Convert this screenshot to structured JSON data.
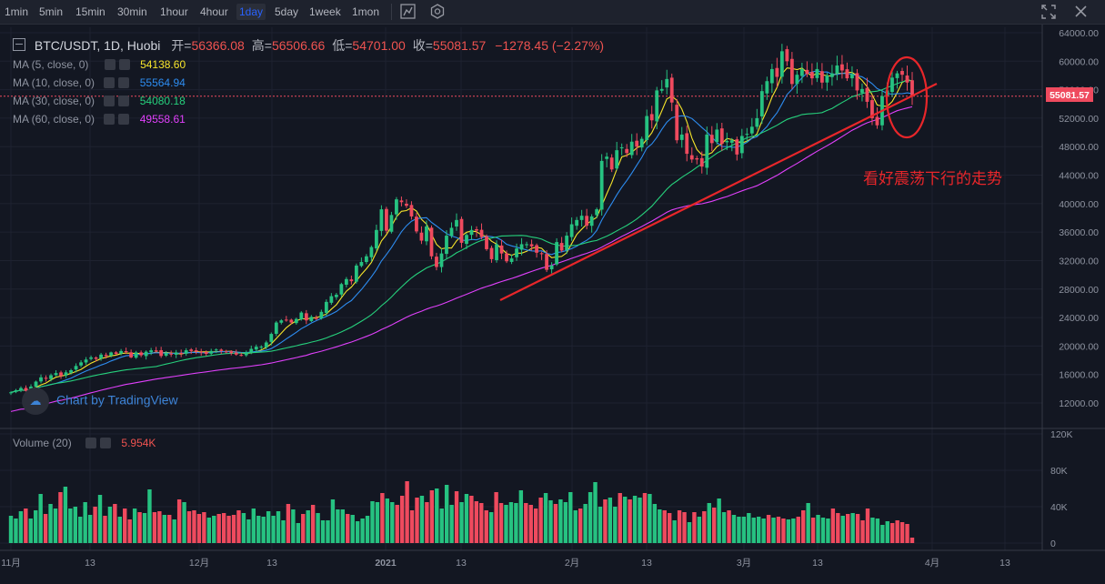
{
  "toolbar": {
    "timeframes": [
      "1min",
      "5min",
      "15min",
      "30min",
      "1hour",
      "4hour",
      "1day",
      "5day",
      "1week",
      "1mon"
    ],
    "active_timeframe": "1day"
  },
  "main": {
    "symbol_label": "BTC/USDT, 1D, Huobi",
    "open_label": "开=",
    "open_value": "56366.08",
    "high_label": "高=",
    "high_value": "56506.66",
    "low_label": "低=",
    "low_value": "54701.00",
    "close_label": "收=",
    "close_value": "55081.57",
    "change": "−1278.45 (−2.27%)",
    "ma": [
      {
        "label": "MA (5, close, 0)",
        "value": "54138.60",
        "color": "#f7e52b"
      },
      {
        "label": "MA (10, close, 0)",
        "value": "55564.94",
        "color": "#2d8cf0"
      },
      {
        "label": "MA (30, close, 0)",
        "value": "54080.18",
        "color": "#26d07c"
      },
      {
        "label": "MA (60, close, 0)",
        "value": "49558.61",
        "color": "#e040fb"
      }
    ],
    "watermark": "Chart by TradingView",
    "annotation": "看好震荡下行的走势",
    "price_tag": "55081.57"
  },
  "volume": {
    "label": "Volume (20)",
    "value": "5.954K"
  },
  "colors": {
    "up": "#26c281",
    "down": "#ef4a5e",
    "annotation": "#e8262a",
    "background": "#131722"
  },
  "chart_data": [
    {
      "type": "candlestick",
      "title": "BTC/USDT, 1D, Huobi",
      "y_ticks": [
        "64000.00",
        "60000.00",
        "56000.00",
        "52000.00",
        "48000.00",
        "44000.00",
        "40000.00",
        "36000.00",
        "32000.00",
        "28000.00",
        "24000.00",
        "20000.00",
        "16000.00",
        "12000.00"
      ],
      "ylim": [
        10000,
        65000
      ],
      "x_ticks": [
        "11月",
        "13",
        "12月",
        "13",
        "2021",
        "13",
        "2月",
        "13",
        "3月",
        "13",
        "4月",
        "13"
      ],
      "close_series": [
        13500,
        13800,
        14100,
        13700,
        14300,
        15000,
        15600,
        15400,
        15900,
        16200,
        15800,
        16300,
        16600,
        17200,
        17700,
        18100,
        18400,
        18200,
        18800,
        18600,
        19100,
        18900,
        19300,
        19200,
        18400,
        19100,
        18700,
        19200,
        19400,
        19300,
        18600,
        19000,
        18800,
        19100,
        18900,
        19400,
        19300,
        19200,
        19100,
        18900,
        19300,
        19500,
        19300,
        19200,
        19000,
        18800,
        18700,
        19100,
        19600,
        19900,
        19900,
        20500,
        21700,
        23300,
        23600,
        23700,
        23300,
        23800,
        24700,
        23600,
        24100,
        23800,
        24800,
        26200,
        27000,
        27200,
        28700,
        29400,
        29100,
        31300,
        31800,
        32600,
        33900,
        36300,
        39200,
        36200,
        38400,
        40600,
        40200,
        39700,
        38200,
        36100,
        34800,
        36800,
        32600,
        31100,
        33000,
        35500,
        36600,
        37700,
        34500,
        35600,
        36300,
        36200,
        35300,
        33600,
        32200,
        34300,
        33000,
        31900,
        32300,
        33700,
        34300,
        34300,
        34000,
        33100,
        32900,
        30700,
        31300,
        34600,
        33400,
        35500,
        37100,
        37700,
        38300,
        36900,
        38200,
        39200,
        46000,
        46600,
        44800,
        47500,
        47900,
        47100,
        48700,
        48000,
        49100,
        52300,
        51700,
        55900,
        56100,
        57500,
        54200,
        48900,
        49700,
        47000,
        46200,
        46200,
        45200,
        49700,
        48500,
        50400,
        48400,
        48800,
        48900,
        46900,
        49500,
        49800,
        50800,
        52000,
        55800,
        57200,
        58900,
        57800,
        61400,
        60000,
        56800,
        58100,
        58900,
        58200,
        57600,
        58900,
        57000,
        58000,
        58300,
        59400,
        58700,
        57600,
        58200,
        55900,
        56100,
        54300,
        52000,
        51000,
        55100,
        55900,
        57700,
        58300,
        58100,
        57000,
        55100
      ],
      "ma": [
        {
          "name": "MA (5, close, 0)",
          "value": 54138.6
        },
        {
          "name": "MA (10, close, 0)",
          "value": 55564.94
        },
        {
          "name": "MA (30, close, 0)",
          "value": 54080.18
        },
        {
          "name": "MA (60, close, 0)",
          "value": 49558.61
        }
      ],
      "last_price": 55081.57
    },
    {
      "type": "bar",
      "title": "Volume (20)",
      "y_ticks": [
        "120K",
        "80K",
        "40K",
        "0"
      ],
      "ylim": [
        0,
        120000
      ],
      "values": [
        30000,
        27000,
        35000,
        38000,
        27000,
        36000,
        54000,
        32000,
        43000,
        38000,
        56000,
        62000,
        38000,
        40000,
        29000,
        45000,
        31000,
        40000,
        53000,
        30000,
        40000,
        43000,
        29000,
        38000,
        26000,
        38000,
        34000,
        33000,
        59000,
        34000,
        35000,
        31000,
        31000,
        26000,
        48000,
        45000,
        35000,
        36000,
        32000,
        34000,
        28000,
        30000,
        32000,
        33000,
        30000,
        31000,
        36000,
        33000,
        26000,
        38000,
        30000,
        29000,
        35000,
        30000,
        35000,
        25000,
        43000,
        37000,
        22000,
        32000,
        36000,
        42000,
        33000,
        25000,
        25000,
        48000,
        37000,
        37000,
        32000,
        31000,
        24000,
        27000,
        30000,
        46000,
        45000,
        55000,
        49000,
        45000,
        42000,
        52000,
        68000,
        36000,
        50000,
        52000,
        45000,
        58000,
        60000,
        38000,
        64000,
        42000,
        57000,
        45000,
        54000,
        52000,
        46000,
        44000,
        36000,
        34000,
        56000,
        44000,
        42000,
        45000,
        44000,
        58000,
        44000,
        42000,
        38000,
        50000,
        55000,
        47000,
        43000,
        48000,
        45000,
        56000,
        36000,
        38000,
        43000,
        56000,
        67000,
        40000,
        48000,
        50000,
        40000,
        55000,
        51000,
        48000,
        52000,
        50000,
        55000,
        54000,
        43000,
        37000,
        36000,
        33000,
        25000,
        36000,
        34000,
        23000,
        34000,
        29000,
        35000,
        44000,
        39000,
        49000,
        34000,
        36000,
        31000,
        29000,
        29000,
        33000,
        28000,
        29000,
        27000,
        31000,
        28000,
        29000,
        27000,
        26000,
        27000,
        29000,
        36000,
        44000,
        28000,
        31000,
        28000,
        27000,
        38000,
        33000,
        30000,
        32000,
        33000,
        32000,
        25000,
        38000,
        28000,
        27000,
        20000,
        24000,
        22000,
        25000,
        23000,
        21000,
        6000
      ]
    }
  ]
}
